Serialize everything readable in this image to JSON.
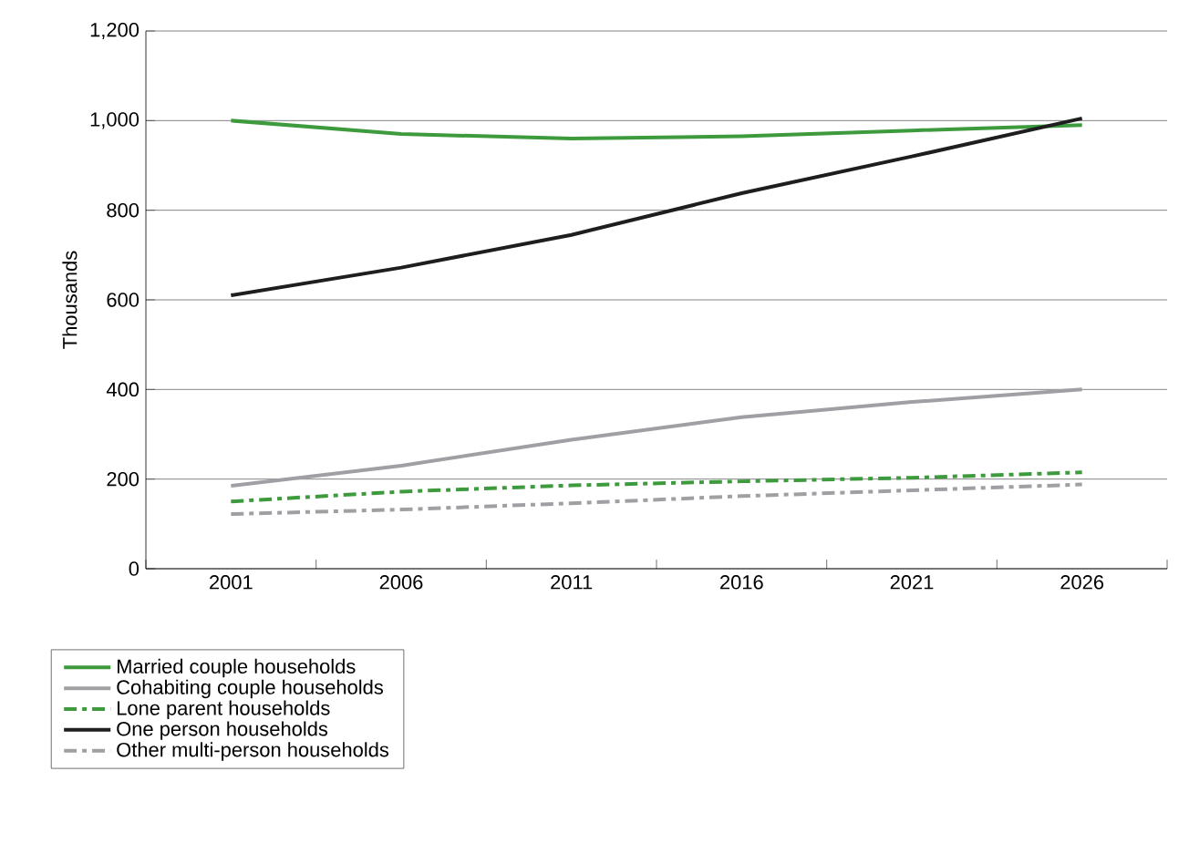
{
  "chart_data": {
    "type": "line",
    "ylabel": "Thousands",
    "categories": [
      "2001",
      "2006",
      "2011",
      "2016",
      "2021",
      "2026"
    ],
    "series": [
      {
        "name": "Married couple households",
        "color": "#3d9a3d",
        "line_style": "solid",
        "values": [
          1000,
          970,
          960,
          965,
          978,
          990
        ]
      },
      {
        "name": "Cohabiting couple households",
        "color": "#a0a0a4",
        "line_style": "solid",
        "values": [
          185,
          230,
          288,
          338,
          372,
          400
        ]
      },
      {
        "name": "Lone parent households",
        "color": "#3d9a3d",
        "line_style": "dashed",
        "values": [
          150,
          172,
          186,
          195,
          203,
          215
        ]
      },
      {
        "name": "One person households",
        "color": "#1e1e1e",
        "line_style": "solid",
        "values": [
          610,
          672,
          745,
          838,
          920,
          1005
        ]
      },
      {
        "name": "Other multi-person households",
        "color": "#a0a0a4",
        "line_style": "dashed",
        "values": [
          122,
          132,
          146,
          162,
          175,
          188
        ]
      }
    ],
    "ylim": [
      0,
      1200
    ],
    "yticks": [
      0,
      200,
      400,
      600,
      800,
      {
        "value": 1000,
        "label": "1,000"
      },
      {
        "value": 1200,
        "label": "1,200"
      }
    ],
    "grid": "y",
    "legend": "bottom",
    "marker": "none"
  }
}
